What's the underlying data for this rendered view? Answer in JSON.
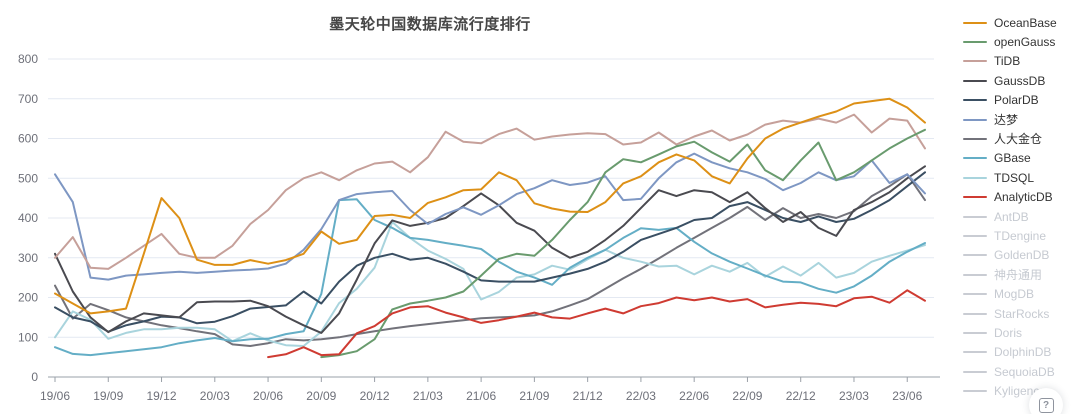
{
  "title": "墨天轮中国数据库流行度排行",
  "help": {
    "glyph": "?"
  },
  "colors": {
    "grid": "#e4e9f2",
    "axis": "#9aa0a8",
    "tick_label": "#6e7079",
    "legend_active_text": "#333333",
    "legend_inactive": "#c9ccd3",
    "legend_inactive_text": "#c6cad1"
  },
  "legend": {
    "items": [
      {
        "label": "OceanBase",
        "color": "#dd9016",
        "active": true
      },
      {
        "label": "openGauss",
        "color": "#699b6e",
        "active": true
      },
      {
        "label": "TiDB",
        "color": "#c6a09a",
        "active": true
      },
      {
        "label": "GaussDB",
        "color": "#4a4a50",
        "active": true
      },
      {
        "label": "PolarDB",
        "color": "#3a4f63",
        "active": true
      },
      {
        "label": "达梦",
        "color": "#7e97c3",
        "active": true
      },
      {
        "label": "人大金仓",
        "color": "#72727a",
        "active": true
      },
      {
        "label": "GBase",
        "color": "#64aec6",
        "active": true
      },
      {
        "label": "TDSQL",
        "color": "#a9d4dd",
        "active": true
      },
      {
        "label": "AnalyticDB",
        "color": "#cf3b32",
        "active": true
      },
      {
        "label": "AntDB",
        "color": "#c9ccd3",
        "active": false
      },
      {
        "label": "TDengine",
        "color": "#c9ccd3",
        "active": false
      },
      {
        "label": "GoldenDB",
        "color": "#c9ccd3",
        "active": false
      },
      {
        "label": "神舟通用",
        "color": "#c9ccd3",
        "active": false
      },
      {
        "label": "MogDB",
        "color": "#c9ccd3",
        "active": false
      },
      {
        "label": "StarRocks",
        "color": "#c9ccd3",
        "active": false
      },
      {
        "label": "Doris",
        "color": "#c9ccd3",
        "active": false
      },
      {
        "label": "DolphinDB",
        "color": "#c9ccd3",
        "active": false
      },
      {
        "label": "SequoiaDB",
        "color": "#c9ccd3",
        "active": false
      },
      {
        "label": "Kyligence",
        "color": "#c9ccd3",
        "active": false
      }
    ]
  },
  "chart_data": {
    "type": "line",
    "title": "墨天轮中国数据库流行度排行",
    "xlabel": "",
    "ylabel": "",
    "ylim": [
      0,
      800
    ],
    "y_ticks": [
      0,
      100,
      200,
      300,
      400,
      500,
      600,
      700,
      800
    ],
    "grid": true,
    "legend_position": "right",
    "x_tick_labels": [
      "19/06",
      "19/09",
      "19/12",
      "20/03",
      "20/06",
      "20/09",
      "20/12",
      "21/03",
      "21/06",
      "21/09",
      "21/12",
      "22/03",
      "22/06",
      "22/09",
      "22/12",
      "23/03",
      "23/06"
    ],
    "x": [
      "19/06",
      "19/07",
      "19/08",
      "19/09",
      "19/10",
      "19/11",
      "19/12",
      "20/01",
      "20/02",
      "20/03",
      "20/04",
      "20/05",
      "20/06",
      "20/07",
      "20/08",
      "20/09",
      "20/10",
      "20/11",
      "20/12",
      "21/01",
      "21/02",
      "21/03",
      "21/04",
      "21/05",
      "21/06",
      "21/07",
      "21/08",
      "21/09",
      "21/10",
      "21/11",
      "21/12",
      "22/01",
      "22/02",
      "22/03",
      "22/04",
      "22/05",
      "22/06",
      "22/07",
      "22/08",
      "22/09",
      "22/10",
      "22/11",
      "22/12",
      "23/01",
      "23/02",
      "23/03",
      "23/04",
      "23/05",
      "23/06",
      "23/07"
    ],
    "series": [
      {
        "name": "OceanBase",
        "color": "#dd9016",
        "values": [
          210,
          185,
          160,
          165,
          172,
          310,
          450,
          400,
          295,
          282,
          282,
          294,
          285,
          294,
          310,
          366,
          335,
          345,
          405,
          408,
          400,
          438,
          452,
          470,
          472,
          515,
          495,
          437,
          424,
          416,
          415,
          440,
          487,
          505,
          540,
          560,
          545,
          505,
          487,
          550,
          600,
          625,
          640,
          655,
          668,
          688,
          694,
          700,
          678,
          640
        ]
      },
      {
        "name": "openGauss",
        "color": "#699b6e",
        "values": [
          null,
          null,
          null,
          null,
          null,
          null,
          null,
          null,
          null,
          null,
          null,
          null,
          null,
          null,
          null,
          50,
          55,
          65,
          95,
          170,
          185,
          192,
          200,
          215,
          255,
          297,
          310,
          305,
          345,
          395,
          440,
          515,
          548,
          540,
          560,
          580,
          592,
          565,
          542,
          585,
          520,
          495,
          545,
          590,
          495,
          515,
          545,
          575,
          600,
          622
        ]
      },
      {
        "name": "TiDB",
        "color": "#c6a09a",
        "values": [
          300,
          352,
          275,
          272,
          300,
          330,
          360,
          310,
          300,
          300,
          330,
          385,
          420,
          470,
          500,
          515,
          495,
          520,
          537,
          542,
          515,
          553,
          617,
          592,
          588,
          611,
          625,
          597,
          605,
          610,
          613,
          611,
          585,
          590,
          615,
          585,
          605,
          620,
          595,
          610,
          635,
          645,
          640,
          650,
          640,
          660,
          615,
          650,
          645,
          575
        ]
      },
      {
        "name": "GaussDB",
        "color": "#4a4a50",
        "values": [
          310,
          215,
          150,
          113,
          140,
          160,
          155,
          150,
          188,
          190,
          190,
          192,
          178,
          152,
          130,
          111,
          160,
          245,
          336,
          394,
          380,
          388,
          400,
          430,
          462,
          432,
          388,
          368,
          325,
          300,
          315,
          345,
          380,
          425,
          470,
          455,
          470,
          465,
          440,
          465,
          425,
          390,
          415,
          375,
          355,
          420,
          440,
          465,
          500,
          530
        ]
      },
      {
        "name": "PolarDB",
        "color": "#3a4f63",
        "values": [
          175,
          150,
          140,
          114,
          130,
          140,
          152,
          150,
          135,
          139,
          153,
          172,
          176,
          180,
          215,
          185,
          240,
          280,
          300,
          310,
          295,
          300,
          285,
          265,
          243,
          240,
          240,
          240,
          250,
          260,
          272,
          290,
          315,
          345,
          360,
          375,
          395,
          400,
          430,
          440,
          420,
          400,
          390,
          404,
          390,
          398,
          420,
          445,
          480,
          515
        ]
      },
      {
        "name": "达梦",
        "color": "#7e97c3",
        "values": [
          510,
          440,
          250,
          245,
          255,
          258,
          262,
          265,
          262,
          265,
          268,
          270,
          273,
          285,
          320,
          372,
          445,
          460,
          465,
          468,
          420,
          385,
          410,
          427,
          408,
          432,
          460,
          475,
          495,
          483,
          489,
          505,
          445,
          448,
          500,
          540,
          562,
          540,
          525,
          515,
          498,
          470,
          488,
          515,
          495,
          505,
          545,
          488,
          510,
          462
        ]
      },
      {
        "name": "人大金仓",
        "color": "#72727a",
        "values": [
          230,
          147,
          184,
          168,
          150,
          140,
          130,
          123,
          115,
          108,
          82,
          78,
          85,
          95,
          92,
          95,
          100,
          108,
          115,
          122,
          128,
          133,
          138,
          143,
          148,
          150,
          152,
          155,
          165,
          180,
          196,
          222,
          248,
          272,
          298,
          325,
          350,
          375,
          400,
          428,
          395,
          425,
          400,
          410,
          400,
          417,
          455,
          480,
          510,
          445
        ]
      },
      {
        "name": "GBase",
        "color": "#64aec6",
        "values": [
          75,
          58,
          55,
          60,
          65,
          70,
          75,
          85,
          92,
          98,
          90,
          95,
          96,
          108,
          115,
          209,
          445,
          447,
          395,
          375,
          350,
          345,
          337,
          330,
          322,
          290,
          265,
          250,
          232,
          275,
          300,
          320,
          350,
          374,
          370,
          375,
          340,
          311,
          290,
          273,
          255,
          240,
          238,
          222,
          212,
          228,
          255,
          290,
          315,
          337
        ]
      },
      {
        "name": "TDSQL",
        "color": "#a9d4dd",
        "values": [
          100,
          165,
          144,
          96,
          111,
          120,
          120,
          124,
          124,
          120,
          90,
          110,
          92,
          80,
          78,
          114,
          186,
          222,
          275,
          390,
          350,
          318,
          297,
          272,
          195,
          214,
          250,
          258,
          280,
          270,
          296,
          320,
          300,
          290,
          278,
          280,
          258,
          280,
          265,
          287,
          252,
          278,
          255,
          287,
          250,
          262,
          290,
          305,
          318,
          332
        ]
      },
      {
        "name": "AnalyticDB",
        "color": "#cf3b32",
        "values": [
          null,
          null,
          null,
          null,
          null,
          null,
          null,
          null,
          null,
          null,
          null,
          null,
          50,
          57,
          75,
          55,
          57,
          110,
          128,
          160,
          175,
          178,
          162,
          150,
          136,
          143,
          152,
          162,
          150,
          147,
          160,
          172,
          160,
          178,
          186,
          200,
          193,
          200,
          190,
          196,
          175,
          182,
          187,
          184,
          178,
          198,
          202,
          187,
          218,
          192
        ]
      }
    ]
  }
}
